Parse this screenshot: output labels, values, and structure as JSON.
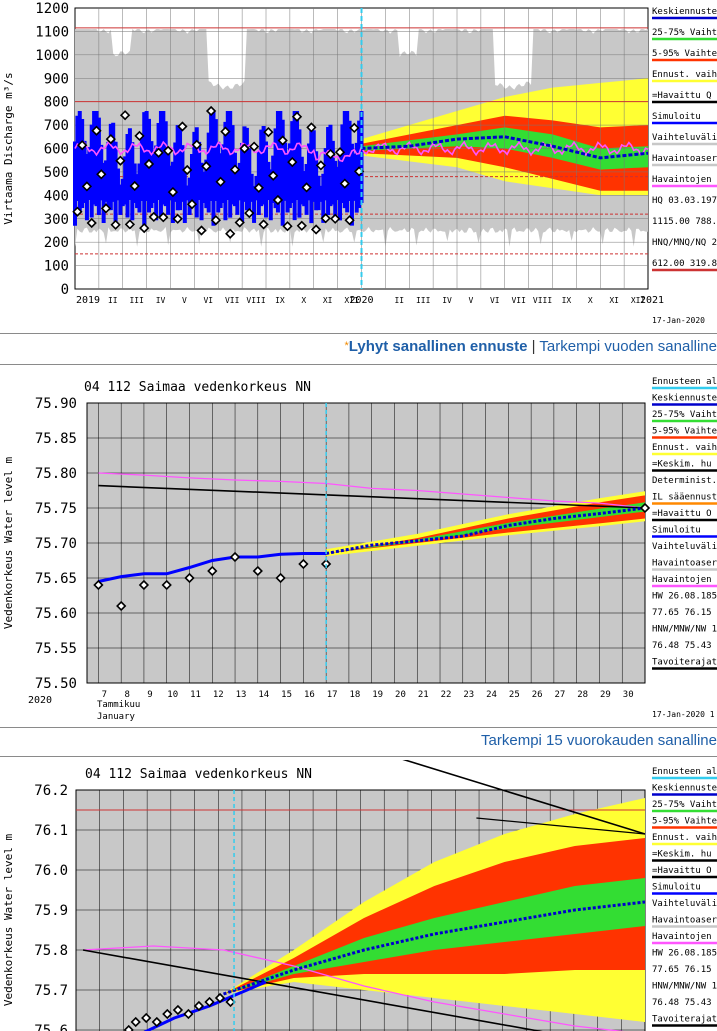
{
  "colors": {
    "observed_blue": "#0000ff",
    "simulated_pink": "#ff55ff",
    "band_5_95": "#ff3300",
    "band_25_75": "#33dd33",
    "band_yellow": "#ffff33",
    "history_grey": "#c8c8c8",
    "mean_blue": "#0000cc",
    "cyan_today": "#33ccee",
    "red_ref": "#cc3333",
    "link": "#1f5fa8",
    "star": "#f08a00"
  },
  "links": {
    "row1": {
      "star": "*",
      "bold": "Lyhyt sanallinen ennuste",
      "sep": " | ",
      "rest": "Tarkempi vuoden sanalline"
    },
    "row2": {
      "text": "Tarkempi 15 vuorokauden sanalline"
    }
  },
  "chart1": {
    "ylabel": "Virtaama Discharge m³/s",
    "yticks": [
      "0",
      "100",
      "200",
      "300",
      "400",
      "500",
      "600",
      "700",
      "800",
      "900",
      "1000",
      "1100",
      "1200"
    ],
    "year_labels": [
      "2019",
      "2020",
      "2021"
    ],
    "months": [
      "II",
      "III",
      "IV",
      "V",
      "VI",
      "VII",
      "VIII",
      "IX",
      "X",
      "XI",
      "XII",
      "II",
      "III",
      "IV",
      "V",
      "VI",
      "VII",
      "VIII",
      "IX",
      "X",
      "XI",
      "XII"
    ],
    "date": "17-Jan-2020",
    "legend": [
      {
        "label": "Keskiennuste",
        "color": "#0000cc"
      },
      {
        "label": "25-75% Vaihte",
        "color": "#33dd33"
      },
      {
        "label": "5-95% Vaihte",
        "color": "#ff3300"
      },
      {
        "label": "Ennust. vaih",
        "color": "#ffff33"
      },
      {
        "label": "=Havaittu Q",
        "color": "#000000"
      },
      {
        "label": "Simuloitu",
        "color": "#0000ff"
      },
      {
        "label": "Vaihteluväli",
        "color": "#c8c8c8"
      },
      {
        "label": "Havaintoaser",
        "color": "#c8c8c8"
      },
      {
        "label": "Havaintojen",
        "color": "#ff55ff"
      },
      {
        "label": "HQ 03.03.197",
        "color": ""
      },
      {
        "label": "1115.00 788.",
        "color": ""
      },
      {
        "label": "HNQ/MNQ/NQ 2",
        "color": ""
      },
      {
        "label": "612.00 319.8",
        "color": "#cc3333"
      }
    ]
  },
  "chart2": {
    "title": "04 112 Saimaa vedenkorkeus NN",
    "ylabel": "Vedenkorkeus Water level m",
    "yticks": [
      "75.50",
      "75.55",
      "75.60",
      "75.65",
      "75.70",
      "75.75",
      "75.80",
      "75.85",
      "75.90"
    ],
    "xdays": [
      "7",
      "8",
      "9",
      "10",
      "11",
      "12",
      "13",
      "14",
      "15",
      "16",
      "17",
      "18",
      "19",
      "20",
      "21",
      "22",
      "23",
      "24",
      "25",
      "26",
      "27",
      "28",
      "29",
      "30"
    ],
    "month_fi": "Tammikuu",
    "month_en": "January",
    "year": "2020",
    "date": "17-Jan-2020 1",
    "legend": [
      {
        "label": "Ennusteen al",
        "color": "#33ccee"
      },
      {
        "label": "Keskiennuste",
        "color": "#0000cc"
      },
      {
        "label": "25-75% Vaiht",
        "color": "#33dd33"
      },
      {
        "label": "5-95% Vaihte",
        "color": "#ff3300"
      },
      {
        "label": "Ennust. vaih",
        "color": "#ffff33"
      },
      {
        "label": "=Keskim. hu",
        "color": "#000000"
      },
      {
        "label": "Determinist.",
        "color": ""
      },
      {
        "label": "IL sääennust",
        "color": "#ff8800"
      },
      {
        "label": "=Havaittu O",
        "color": "#000000"
      },
      {
        "label": "Simuloitu",
        "color": "#0000ff"
      },
      {
        "label": "Vaihteluväli",
        "color": ""
      },
      {
        "label": "Havaintoaser",
        "color": "#c8c8c8"
      },
      {
        "label": "Havaintojen",
        "color": "#ff55ff"
      },
      {
        "label": "HW 26.08.185",
        "color": ""
      },
      {
        "label": "77.65 76.15",
        "color": ""
      },
      {
        "label": "HNW/MNW/NW 1",
        "color": ""
      },
      {
        "label": "76.48 75.43",
        "color": ""
      },
      {
        "label": "Tavoiterajat",
        "color": "#000000"
      }
    ]
  },
  "chart3": {
    "title": "04 112 Saimaa vedenkorkeus NN",
    "ylabel": "Vedenkorkeus Water level m",
    "yticks": [
      "75.6",
      "75.7",
      "75.8",
      "75.9",
      "76.0",
      "76.1",
      "76.2"
    ],
    "legend": [
      {
        "label": "Ennusteen al",
        "color": "#33ccee"
      },
      {
        "label": "Keskiennuste",
        "color": "#0000cc"
      },
      {
        "label": "25-75% Vaiht",
        "color": "#33dd33"
      },
      {
        "label": "5-95% Vaihte",
        "color": "#ff3300"
      },
      {
        "label": "Ennust. vaih",
        "color": "#ffff33"
      },
      {
        "label": "=Keskim. hu",
        "color": "#000000"
      },
      {
        "label": "=Havaittu O",
        "color": "#000000"
      },
      {
        "label": "Simuloitu",
        "color": "#0000ff"
      },
      {
        "label": "Vaihteluväli",
        "color": ""
      },
      {
        "label": "Havaintoaser",
        "color": "#c8c8c8"
      },
      {
        "label": "Havaintojen",
        "color": "#ff55ff"
      },
      {
        "label": "HW 26.08.185",
        "color": ""
      },
      {
        "label": "77.65 76.15",
        "color": ""
      },
      {
        "label": "HNW/MNW/NW 1",
        "color": ""
      },
      {
        "label": "76.48 75.43",
        "color": ""
      },
      {
        "label": "Tavoiterajat",
        "color": "#000000"
      }
    ]
  },
  "chart_data": [
    {
      "type": "line",
      "title": "",
      "ylabel": "Virtaama Discharge m³/s",
      "xlabel": "",
      "x_range": [
        "2019-01",
        "2021-01"
      ],
      "ylim": [
        0,
        1200
      ],
      "grid": true,
      "legend_placement": "right",
      "reference_lines": {
        "HQ": 1115,
        "HQ_2": 788,
        "HNQ": 612,
        "MNQ": 319.8
      },
      "series": [
        {
          "name": "Simuloitu",
          "x": [
            "2019-01",
            "2019-03",
            "2019-05",
            "2019-07",
            "2019-09",
            "2019-11",
            "2020-01"
          ],
          "values": [
            560,
            500,
            540,
            620,
            520,
            420,
            600
          ]
        },
        {
          "name": "Havaintojen",
          "x": [
            "2019-01",
            "2019-03",
            "2019-05",
            "2019-07",
            "2019-09",
            "2019-11",
            "2020-01"
          ],
          "values": [
            600,
            590,
            610,
            620,
            600,
            560,
            600
          ]
        },
        {
          "name": "Keskiennuste",
          "x": [
            "2020-01",
            "2020-03",
            "2020-05",
            "2020-07",
            "2020-09",
            "2020-11",
            "2021-01"
          ],
          "values": [
            600,
            610,
            640,
            650,
            610,
            560,
            580
          ]
        },
        {
          "name": "25-75% Vaihte",
          "x": [
            "2020-01",
            "2020-05",
            "2020-07",
            "2020-09",
            "2020-11",
            "2021-01"
          ],
          "low": [
            590,
            610,
            600,
            560,
            510,
            520
          ],
          "high": [
            610,
            660,
            690,
            660,
            600,
            610
          ]
        },
        {
          "name": "5-95% Vaihte",
          "x": [
            "2020-01",
            "2020-05",
            "2020-07",
            "2020-09",
            "2020-11",
            "2021-01"
          ],
          "low": [
            580,
            560,
            520,
            470,
            420,
            420
          ],
          "high": [
            620,
            700,
            740,
            720,
            690,
            700
          ]
        },
        {
          "name": "Ennust. vaih",
          "x": [
            "2020-01",
            "2020-05",
            "2020-07",
            "2020-09",
            "2020-11",
            "2021-01"
          ],
          "low": [
            570,
            520,
            460,
            430,
            400,
            400
          ],
          "high": [
            640,
            760,
            820,
            860,
            880,
            900
          ]
        },
        {
          "name": "Vaihteluväli",
          "x": [
            "2019-01",
            "2020-01",
            "2021-01"
          ],
          "low": [
            230,
            230,
            240
          ],
          "high": [
            1110,
            1110,
            1110
          ]
        }
      ]
    },
    {
      "type": "line",
      "title": "04 112 Saimaa vedenkorkeus NN",
      "ylabel": "Vedenkorkeus Water level m",
      "xlabel": "Tammikuu January 2020",
      "x_range": [
        7,
        30
      ],
      "ylim": [
        75.5,
        75.9
      ],
      "grid": true,
      "legend_placement": "right",
      "series": [
        {
          "name": "=Havaittu O",
          "x": [
            7,
            8,
            9,
            10,
            11,
            12,
            13,
            14,
            15,
            16,
            17,
            31
          ],
          "values": [
            75.64,
            75.61,
            75.64,
            75.64,
            75.65,
            75.66,
            75.68,
            75.66,
            75.65,
            75.67,
            75.67,
            75.75
          ]
        },
        {
          "name": "Simuloitu",
          "x": [
            7,
            8,
            9,
            10,
            11,
            12,
            13,
            14,
            15,
            16,
            17
          ],
          "values": [
            75.645,
            75.652,
            75.656,
            75.656,
            75.665,
            75.675,
            75.68,
            75.68,
            75.684,
            75.685,
            75.685
          ]
        },
        {
          "name": "Keskiennuste",
          "x": [
            17,
            19,
            21,
            23,
            25,
            27,
            29,
            31
          ],
          "values": [
            75.685,
            75.697,
            75.703,
            75.71,
            75.725,
            75.735,
            75.742,
            75.75
          ]
        },
        {
          "name": "Havaintojen",
          "x": [
            7,
            9,
            11,
            13,
            15,
            17,
            19,
            21,
            23,
            25,
            27,
            29,
            31
          ],
          "values": [
            75.8,
            75.797,
            75.793,
            75.79,
            75.788,
            75.785,
            75.778,
            75.775,
            75.77,
            75.765,
            75.76,
            75.757,
            75.75
          ]
        },
        {
          "name": "=Keskim. hu",
          "x": [
            7,
            31
          ],
          "values": [
            75.782,
            75.75
          ]
        },
        {
          "name": "5-95% Vaihte",
          "x": [
            17,
            21,
            25,
            29,
            31
          ],
          "low": [
            75.685,
            75.7,
            75.715,
            75.728,
            75.735
          ],
          "high": [
            75.685,
            75.707,
            75.735,
            75.758,
            75.768
          ]
        }
      ]
    },
    {
      "type": "line",
      "title": "04 112 Saimaa vedenkorkeus NN",
      "ylabel": "Vedenkorkeus Water level m",
      "ylim": [
        75.6,
        76.2
      ],
      "grid": true,
      "legend_placement": "right",
      "reference_lines": {
        "HW": 76.15
      },
      "series": [
        {
          "name": "Keskiennuste",
          "x": [
            0,
            1,
            2,
            3,
            4,
            5,
            6
          ],
          "values": [
            75.69,
            75.75,
            75.8,
            75.84,
            75.87,
            75.9,
            75.92
          ]
        },
        {
          "name": "25-75% Vaiht",
          "x": [
            0,
            1,
            2,
            3,
            4,
            5,
            6
          ],
          "low": [
            75.69,
            75.74,
            75.77,
            75.8,
            75.82,
            75.84,
            75.86
          ],
          "high": [
            75.69,
            75.76,
            75.83,
            75.88,
            75.92,
            75.96,
            75.98
          ]
        },
        {
          "name": "5-95% Vaihte",
          "x": [
            0,
            1,
            2,
            3,
            4,
            5,
            6
          ],
          "low": [
            75.69,
            75.73,
            75.74,
            75.74,
            75.74,
            75.75,
            75.75
          ],
          "high": [
            75.69,
            75.78,
            75.88,
            75.96,
            76.02,
            76.06,
            76.08
          ]
        },
        {
          "name": "Ennust. vaih",
          "x": [
            0,
            1,
            2,
            3,
            4,
            5,
            6
          ],
          "low": [
            75.69,
            75.72,
            75.7,
            75.68,
            75.66,
            75.64,
            75.62
          ],
          "high": [
            75.69,
            75.8,
            75.92,
            76.02,
            76.09,
            76.14,
            76.18
          ]
        },
        {
          "name": "Havaintojen",
          "x": [
            -2,
            -1,
            0,
            1,
            2,
            3,
            4,
            5,
            6
          ],
          "values": [
            75.8,
            75.81,
            75.8,
            75.76,
            75.71,
            75.67,
            75.64,
            75.61,
            75.59
          ]
        },
        {
          "name": "=Keskim. hu",
          "x": [
            -2,
            6
          ],
          "values": [
            75.8,
            75.55
          ]
        }
      ]
    }
  ]
}
